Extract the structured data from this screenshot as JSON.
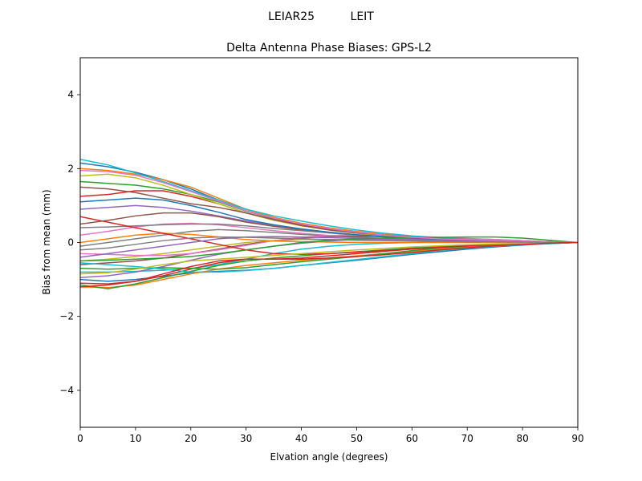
{
  "suptitle": "LEIAR25          LEIT",
  "chart_data": {
    "type": "line",
    "title": "Delta Antenna Phase Biases: GPS-L2",
    "xlabel": "Elvation angle (degrees)",
    "ylabel": "Bias from mean (mm)",
    "xlim": [
      0,
      90
    ],
    "ylim": [
      -5,
      5
    ],
    "xticks": [
      0,
      10,
      20,
      30,
      40,
      50,
      60,
      70,
      80,
      90
    ],
    "yticks": [
      -4,
      -2,
      0,
      2,
      4
    ],
    "xtick_labels": [
      "0",
      "10",
      "20",
      "30",
      "40",
      "50",
      "60",
      "70",
      "80",
      "90"
    ],
    "ytick_labels": [
      "−4",
      "−2",
      "0",
      "2",
      "4"
    ],
    "grid": false,
    "legend": "none",
    "x": [
      0,
      5,
      10,
      15,
      20,
      25,
      30,
      35,
      40,
      45,
      50,
      55,
      60,
      65,
      70,
      75,
      80,
      85,
      90
    ],
    "series": [
      {
        "color": "#1f77b4",
        "values": [
          2.15,
          2.05,
          1.9,
          1.7,
          1.45,
          1.15,
          0.85,
          0.65,
          0.5,
          0.38,
          0.28,
          0.2,
          0.14,
          0.1,
          0.08,
          0.06,
          0.04,
          0.02,
          0
        ]
      },
      {
        "color": "#ff7f0e",
        "values": [
          2.0,
          1.95,
          1.85,
          1.7,
          1.5,
          1.2,
          0.9,
          0.68,
          0.52,
          0.4,
          0.3,
          0.22,
          0.16,
          0.12,
          0.09,
          0.07,
          0.05,
          0.02,
          0
        ]
      },
      {
        "color": "#2ca02c",
        "values": [
          1.65,
          1.6,
          1.55,
          1.45,
          1.3,
          1.1,
          0.85,
          0.66,
          0.5,
          0.38,
          0.28,
          0.2,
          0.15,
          0.11,
          0.08,
          0.06,
          0.04,
          0.02,
          0
        ]
      },
      {
        "color": "#d62728",
        "values": [
          1.25,
          1.3,
          1.4,
          1.4,
          1.25,
          1.05,
          0.8,
          0.62,
          0.48,
          0.36,
          0.27,
          0.2,
          0.14,
          0.1,
          0.08,
          0.06,
          0.04,
          0.02,
          0
        ]
      },
      {
        "color": "#9467bd",
        "values": [
          0.9,
          0.95,
          1.0,
          0.95,
          0.85,
          0.72,
          0.58,
          0.46,
          0.36,
          0.28,
          0.21,
          0.16,
          0.12,
          0.09,
          0.07,
          0.05,
          0.03,
          0.02,
          0
        ]
      },
      {
        "color": "#8c564b",
        "values": [
          0.5,
          0.6,
          0.72,
          0.8,
          0.8,
          0.7,
          0.55,
          0.44,
          0.34,
          0.26,
          0.2,
          0.15,
          0.11,
          0.08,
          0.06,
          0.05,
          0.03,
          0.01,
          0
        ]
      },
      {
        "color": "#e377c2",
        "values": [
          0.2,
          0.3,
          0.42,
          0.5,
          0.52,
          0.48,
          0.4,
          0.32,
          0.25,
          0.19,
          0.15,
          0.11,
          0.08,
          0.06,
          0.05,
          0.04,
          0.02,
          0.01,
          0
        ]
      },
      {
        "color": "#7f7f7f",
        "values": [
          -0.1,
          0.0,
          0.1,
          0.2,
          0.3,
          0.35,
          0.32,
          0.27,
          0.22,
          0.18,
          0.14,
          0.1,
          0.08,
          0.06,
          0.05,
          0.03,
          0.02,
          0.01,
          0
        ]
      },
      {
        "color": "#bcbd22",
        "values": [
          -0.5,
          -0.45,
          -0.38,
          -0.3,
          -0.2,
          -0.1,
          0.0,
          0.05,
          0.08,
          0.08,
          0.07,
          0.06,
          0.05,
          0.04,
          0.03,
          0.02,
          0.01,
          0.0,
          0
        ]
      },
      {
        "color": "#17becf",
        "values": [
          -0.8,
          -0.8,
          -0.78,
          -0.75,
          -0.7,
          -0.6,
          -0.45,
          -0.3,
          -0.18,
          -0.1,
          -0.05,
          -0.02,
          0.0,
          0.01,
          0.02,
          0.02,
          0.01,
          0.0,
          0
        ]
      },
      {
        "color": "#1f77b4",
        "values": [
          -1.0,
          -1.05,
          -1.0,
          -0.92,
          -0.82,
          -0.78,
          -0.75,
          -0.7,
          -0.62,
          -0.55,
          -0.48,
          -0.4,
          -0.32,
          -0.25,
          -0.18,
          -0.12,
          -0.07,
          -0.03,
          0
        ]
      },
      {
        "color": "#ff7f0e",
        "values": [
          -1.2,
          -1.22,
          -1.15,
          -1.0,
          -0.85,
          -0.72,
          -0.62,
          -0.55,
          -0.48,
          -0.42,
          -0.36,
          -0.3,
          -0.24,
          -0.18,
          -0.13,
          -0.08,
          -0.05,
          -0.02,
          0
        ]
      },
      {
        "color": "#2ca02c",
        "values": [
          -1.15,
          -1.25,
          -1.12,
          -0.95,
          -0.78,
          -0.62,
          -0.5,
          -0.42,
          -0.36,
          -0.3,
          -0.25,
          -0.2,
          -0.15,
          -0.11,
          -0.08,
          -0.05,
          -0.03,
          -0.01,
          0
        ]
      },
      {
        "color": "#d62728",
        "values": [
          -1.1,
          -1.12,
          -1.05,
          -0.9,
          -0.72,
          -0.55,
          -0.45,
          -0.45,
          -0.42,
          -0.36,
          -0.3,
          -0.24,
          -0.18,
          -0.13,
          -0.09,
          -0.06,
          -0.04,
          -0.02,
          0
        ]
      },
      {
        "color": "#9467bd",
        "values": [
          -0.95,
          -0.9,
          -0.8,
          -0.65,
          -0.48,
          -0.32,
          -0.2,
          -0.1,
          -0.02,
          0.04,
          0.08,
          0.1,
          0.1,
          0.09,
          0.08,
          0.06,
          0.04,
          0.02,
          0
        ]
      },
      {
        "color": "#8c564b",
        "values": [
          -0.6,
          -0.55,
          -0.5,
          -0.42,
          -0.3,
          -0.18,
          -0.05,
          0.05,
          0.12,
          0.16,
          0.17,
          0.16,
          0.14,
          0.12,
          0.1,
          0.08,
          0.05,
          0.02,
          0
        ]
      },
      {
        "color": "#e377c2",
        "values": [
          -0.3,
          -0.32,
          -0.35,
          -0.35,
          -0.3,
          -0.2,
          -0.08,
          0.05,
          0.14,
          0.19,
          0.2,
          0.19,
          0.17,
          0.14,
          0.11,
          0.08,
          0.05,
          0.02,
          0
        ]
      },
      {
        "color": "#7f7f7f",
        "values": [
          0.4,
          0.42,
          0.45,
          0.48,
          0.5,
          0.5,
          0.45,
          0.38,
          0.32,
          0.26,
          0.21,
          0.16,
          0.12,
          0.09,
          0.07,
          0.05,
          0.03,
          0.01,
          0
        ]
      },
      {
        "color": "#bcbd22",
        "values": [
          1.8,
          1.85,
          1.75,
          1.55,
          1.3,
          1.05,
          0.8,
          0.6,
          0.45,
          0.34,
          0.25,
          0.18,
          0.13,
          0.1,
          0.07,
          0.05,
          0.03,
          0.01,
          0
        ]
      },
      {
        "color": "#17becf",
        "values": [
          2.25,
          2.1,
          1.88,
          1.65,
          1.4,
          1.15,
          0.9,
          0.72,
          0.58,
          0.45,
          0.34,
          0.25,
          0.18,
          0.13,
          0.09,
          0.06,
          0.04,
          0.02,
          0
        ]
      },
      {
        "color": "#1f77b4",
        "values": [
          1.1,
          1.15,
          1.2,
          1.15,
          1.0,
          0.82,
          0.62,
          0.48,
          0.37,
          0.28,
          0.21,
          0.16,
          0.12,
          0.09,
          0.07,
          0.05,
          0.03,
          0.01,
          0
        ]
      },
      {
        "color": "#ff7f0e",
        "values": [
          0.0,
          0.1,
          0.2,
          0.25,
          0.22,
          0.15,
          0.08,
          0.04,
          0.02,
          0.01,
          0.0,
          0.0,
          0.0,
          0.0,
          0.0,
          0.0,
          0.0,
          0.0,
          0
        ]
      },
      {
        "color": "#2ca02c",
        "values": [
          -0.7,
          -0.72,
          -0.7,
          -0.68,
          -0.7,
          -0.72,
          -0.68,
          -0.6,
          -0.52,
          -0.45,
          -0.38,
          -0.3,
          -0.22,
          -0.15,
          -0.1,
          -0.06,
          -0.04,
          -0.02,
          0
        ]
      },
      {
        "color": "#d62728",
        "values": [
          0.7,
          0.55,
          0.4,
          0.25,
          0.1,
          -0.05,
          -0.2,
          -0.3,
          -0.32,
          -0.3,
          -0.26,
          -0.22,
          -0.17,
          -0.13,
          -0.09,
          -0.06,
          -0.04,
          -0.02,
          0
        ]
      },
      {
        "color": "#9467bd",
        "values": [
          -0.4,
          -0.3,
          -0.2,
          -0.1,
          0.0,
          0.1,
          0.15,
          0.16,
          0.15,
          0.13,
          0.11,
          0.09,
          0.07,
          0.05,
          0.04,
          0.03,
          0.02,
          0.01,
          0
        ]
      },
      {
        "color": "#17becf",
        "values": [
          -0.55,
          -0.6,
          -0.65,
          -0.72,
          -0.8,
          -0.8,
          -0.76,
          -0.7,
          -0.62,
          -0.54,
          -0.46,
          -0.38,
          -0.3,
          -0.22,
          -0.15,
          -0.1,
          -0.06,
          -0.03,
          0
        ]
      },
      {
        "color": "#bcbd22",
        "values": [
          -0.85,
          -0.82,
          -0.72,
          -0.6,
          -0.5,
          -0.45,
          -0.4,
          -0.35,
          -0.3,
          -0.25,
          -0.2,
          -0.16,
          -0.12,
          -0.09,
          -0.06,
          -0.04,
          -0.02,
          -0.01,
          0
        ]
      },
      {
        "color": "#2ca02c",
        "values": [
          -0.5,
          -0.48,
          -0.45,
          -0.42,
          -0.38,
          -0.3,
          -0.2,
          -0.1,
          0.0,
          0.06,
          0.1,
          0.12,
          0.13,
          0.14,
          0.15,
          0.15,
          0.12,
          0.06,
          0
        ]
      },
      {
        "color": "#8c564b",
        "values": [
          1.5,
          1.45,
          1.35,
          1.2,
          1.05,
          0.95,
          0.8,
          0.62,
          0.46,
          0.34,
          0.26,
          0.2,
          0.15,
          0.11,
          0.08,
          0.06,
          0.04,
          0.02,
          0
        ]
      },
      {
        "color": "#e377c2",
        "values": [
          1.95,
          1.92,
          1.82,
          1.62,
          1.38,
          1.12,
          0.86,
          0.66,
          0.5,
          0.38,
          0.28,
          0.2,
          0.14,
          0.1,
          0.08,
          0.06,
          0.04,
          0.02,
          0
        ]
      },
      {
        "color": "#7f7f7f",
        "values": [
          -0.2,
          -0.15,
          -0.05,
          0.05,
          0.12,
          0.15,
          0.14,
          0.12,
          0.1,
          0.08,
          0.06,
          0.05,
          0.04,
          0.03,
          0.02,
          0.02,
          0.01,
          0.0,
          0
        ]
      },
      {
        "color": "#d62728",
        "values": [
          -1.2,
          -1.15,
          -1.05,
          -0.85,
          -0.65,
          -0.5,
          -0.45,
          -0.45,
          -0.45,
          -0.42,
          -0.38,
          -0.33,
          -0.27,
          -0.2,
          -0.14,
          -0.09,
          -0.05,
          -0.02,
          0
        ]
      }
    ]
  }
}
